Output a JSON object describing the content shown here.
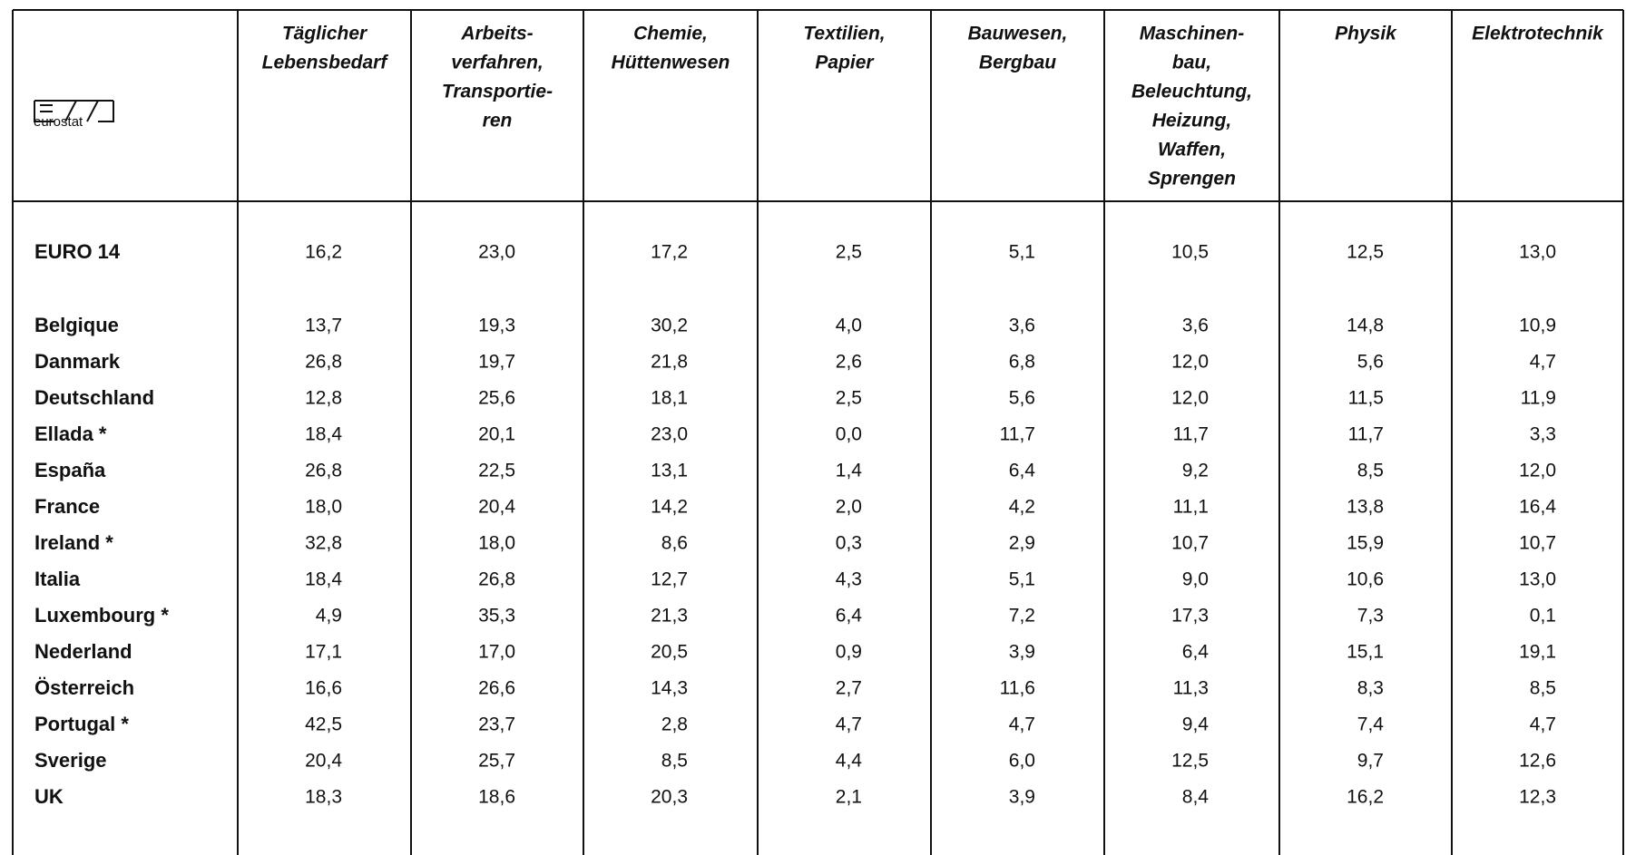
{
  "logo": "eurostat",
  "columns": [
    [
      "Täglicher",
      "Lebensbedarf"
    ],
    [
      "Arbeits-",
      "verfahren,",
      "Transportie-",
      "ren"
    ],
    [
      "Chemie,",
      "Hüttenwesen"
    ],
    [
      "Textilien,",
      "Papier"
    ],
    [
      "Bauwesen,",
      "Bergbau"
    ],
    [
      "Maschinen-",
      "bau,",
      "Beleuchtung,",
      "Heizung,",
      "Waffen,",
      "Sprengen"
    ],
    [
      "Physik"
    ],
    [
      "Elektrotechnik"
    ]
  ],
  "rows": [
    [
      "EURO 14",
      "16,2",
      "23,0",
      "17,2",
      "2,5",
      "5,1",
      "10,5",
      "12,5",
      "13,0"
    ],
    [
      "Belgique",
      "13,7",
      "19,3",
      "30,2",
      "4,0",
      "3,6",
      "3,6",
      "14,8",
      "10,9"
    ],
    [
      "Danmark",
      "26,8",
      "19,7",
      "21,8",
      "2,6",
      "6,8",
      "12,0",
      "5,6",
      "4,7"
    ],
    [
      "Deutschland",
      "12,8",
      "25,6",
      "18,1",
      "2,5",
      "5,6",
      "12,0",
      "11,5",
      "11,9"
    ],
    [
      "Ellada *",
      "18,4",
      "20,1",
      "23,0",
      "0,0",
      "11,7",
      "11,7",
      "11,7",
      "3,3"
    ],
    [
      "España",
      "26,8",
      "22,5",
      "13,1",
      "1,4",
      "6,4",
      "9,2",
      "8,5",
      "12,0"
    ],
    [
      "France",
      "18,0",
      "20,4",
      "14,2",
      "2,0",
      "4,2",
      "11,1",
      "13,8",
      "16,4"
    ],
    [
      "Ireland *",
      "32,8",
      "18,0",
      "8,6",
      "0,3",
      "2,9",
      "10,7",
      "15,9",
      "10,7"
    ],
    [
      "Italia",
      "18,4",
      "26,8",
      "12,7",
      "4,3",
      "5,1",
      "9,0",
      "10,6",
      "13,0"
    ],
    [
      "Luxembourg *",
      "4,9",
      "35,3",
      "21,3",
      "6,4",
      "7,2",
      "17,3",
      "7,3",
      "0,1"
    ],
    [
      "Nederland",
      "17,1",
      "17,0",
      "20,5",
      "0,9",
      "3,9",
      "6,4",
      "15,1",
      "19,1"
    ],
    [
      "Österreich",
      "16,6",
      "26,6",
      "14,3",
      "2,7",
      "11,6",
      "11,3",
      "8,3",
      "8,5"
    ],
    [
      "Portugal *",
      "42,5",
      "23,7",
      "2,8",
      "4,7",
      "4,7",
      "9,4",
      "7,4",
      "4,7"
    ],
    [
      "Sverige",
      "20,4",
      "25,7",
      "8,5",
      "4,4",
      "6,0",
      "12,5",
      "9,7",
      "12,6"
    ],
    [
      "UK",
      "18,3",
      "18,6",
      "20,3",
      "2,1",
      "3,9",
      "8,4",
      "16,2",
      "12,3"
    ]
  ]
}
